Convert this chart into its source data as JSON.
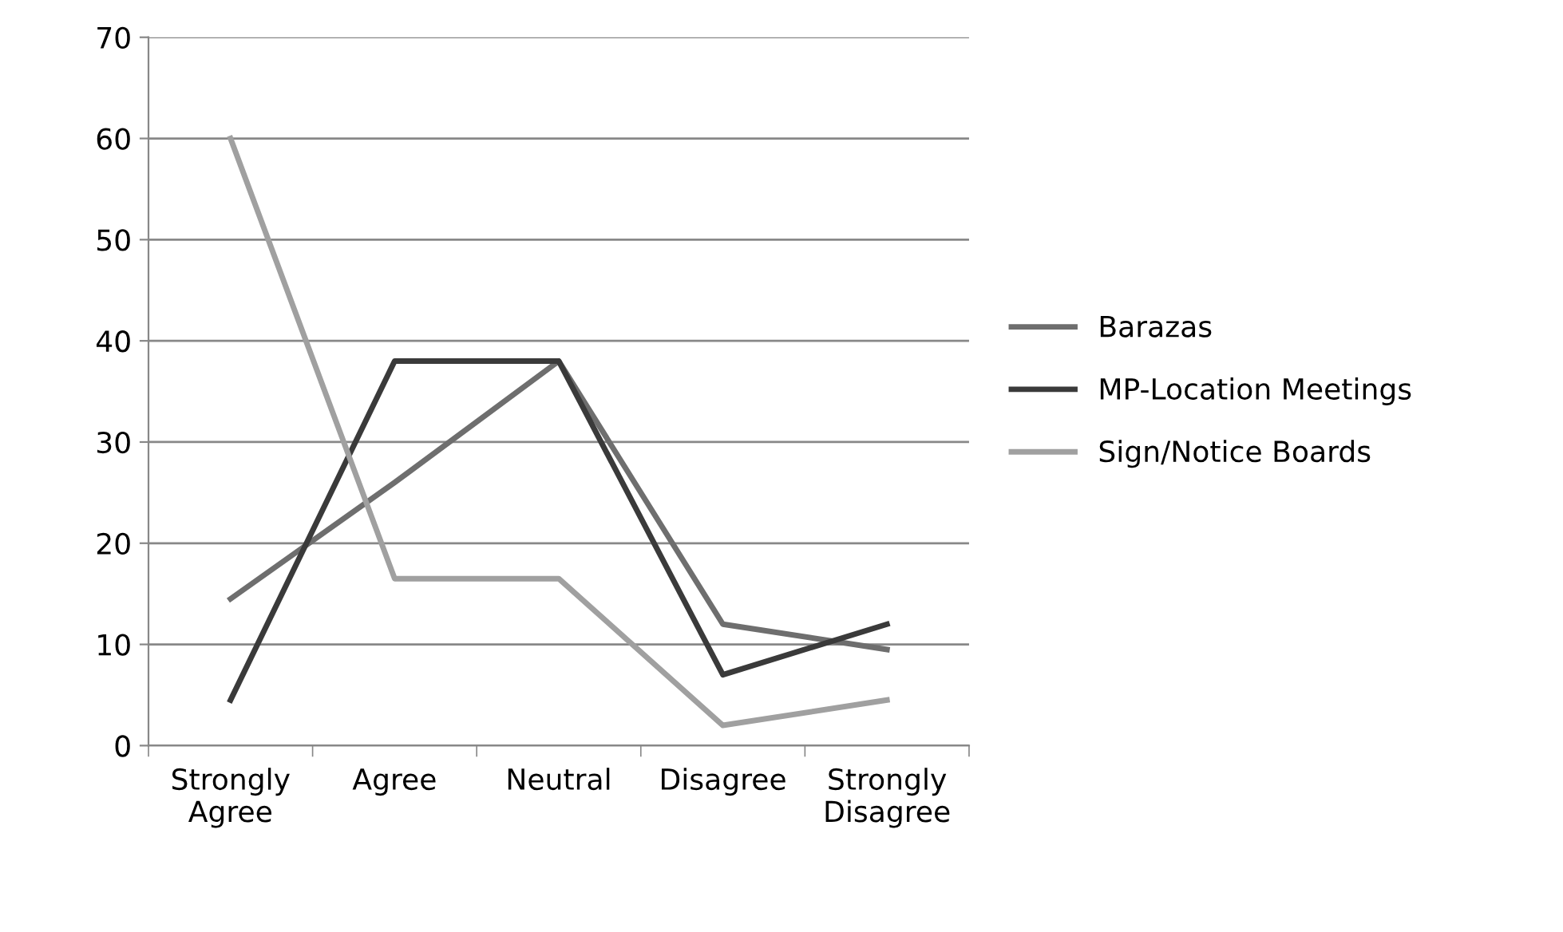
{
  "chart_data": {
    "type": "line",
    "categories": [
      "Strongly\nAgree",
      "Agree",
      "Neutral",
      "Disagree",
      "Strongly\nDisagree"
    ],
    "series": [
      {
        "name": "Barazas",
        "color": "#6e6e6e",
        "values": [
          14.5,
          26,
          38,
          12,
          9.5
        ]
      },
      {
        "name": "MP-Location Meetings",
        "color": "#3a3a3a",
        "values": [
          4.5,
          38,
          38,
          7,
          12
        ]
      },
      {
        "name": "Sign/Notice Boards",
        "color": "#a0a0a0",
        "values": [
          60,
          16.5,
          16.5,
          2,
          4.5
        ]
      }
    ],
    "ylim": [
      0,
      70
    ],
    "yticks": [
      0,
      10,
      20,
      30,
      40,
      50,
      60,
      70
    ],
    "grid": "y",
    "legend": "right",
    "marker": "none",
    "line_style": "solid"
  }
}
